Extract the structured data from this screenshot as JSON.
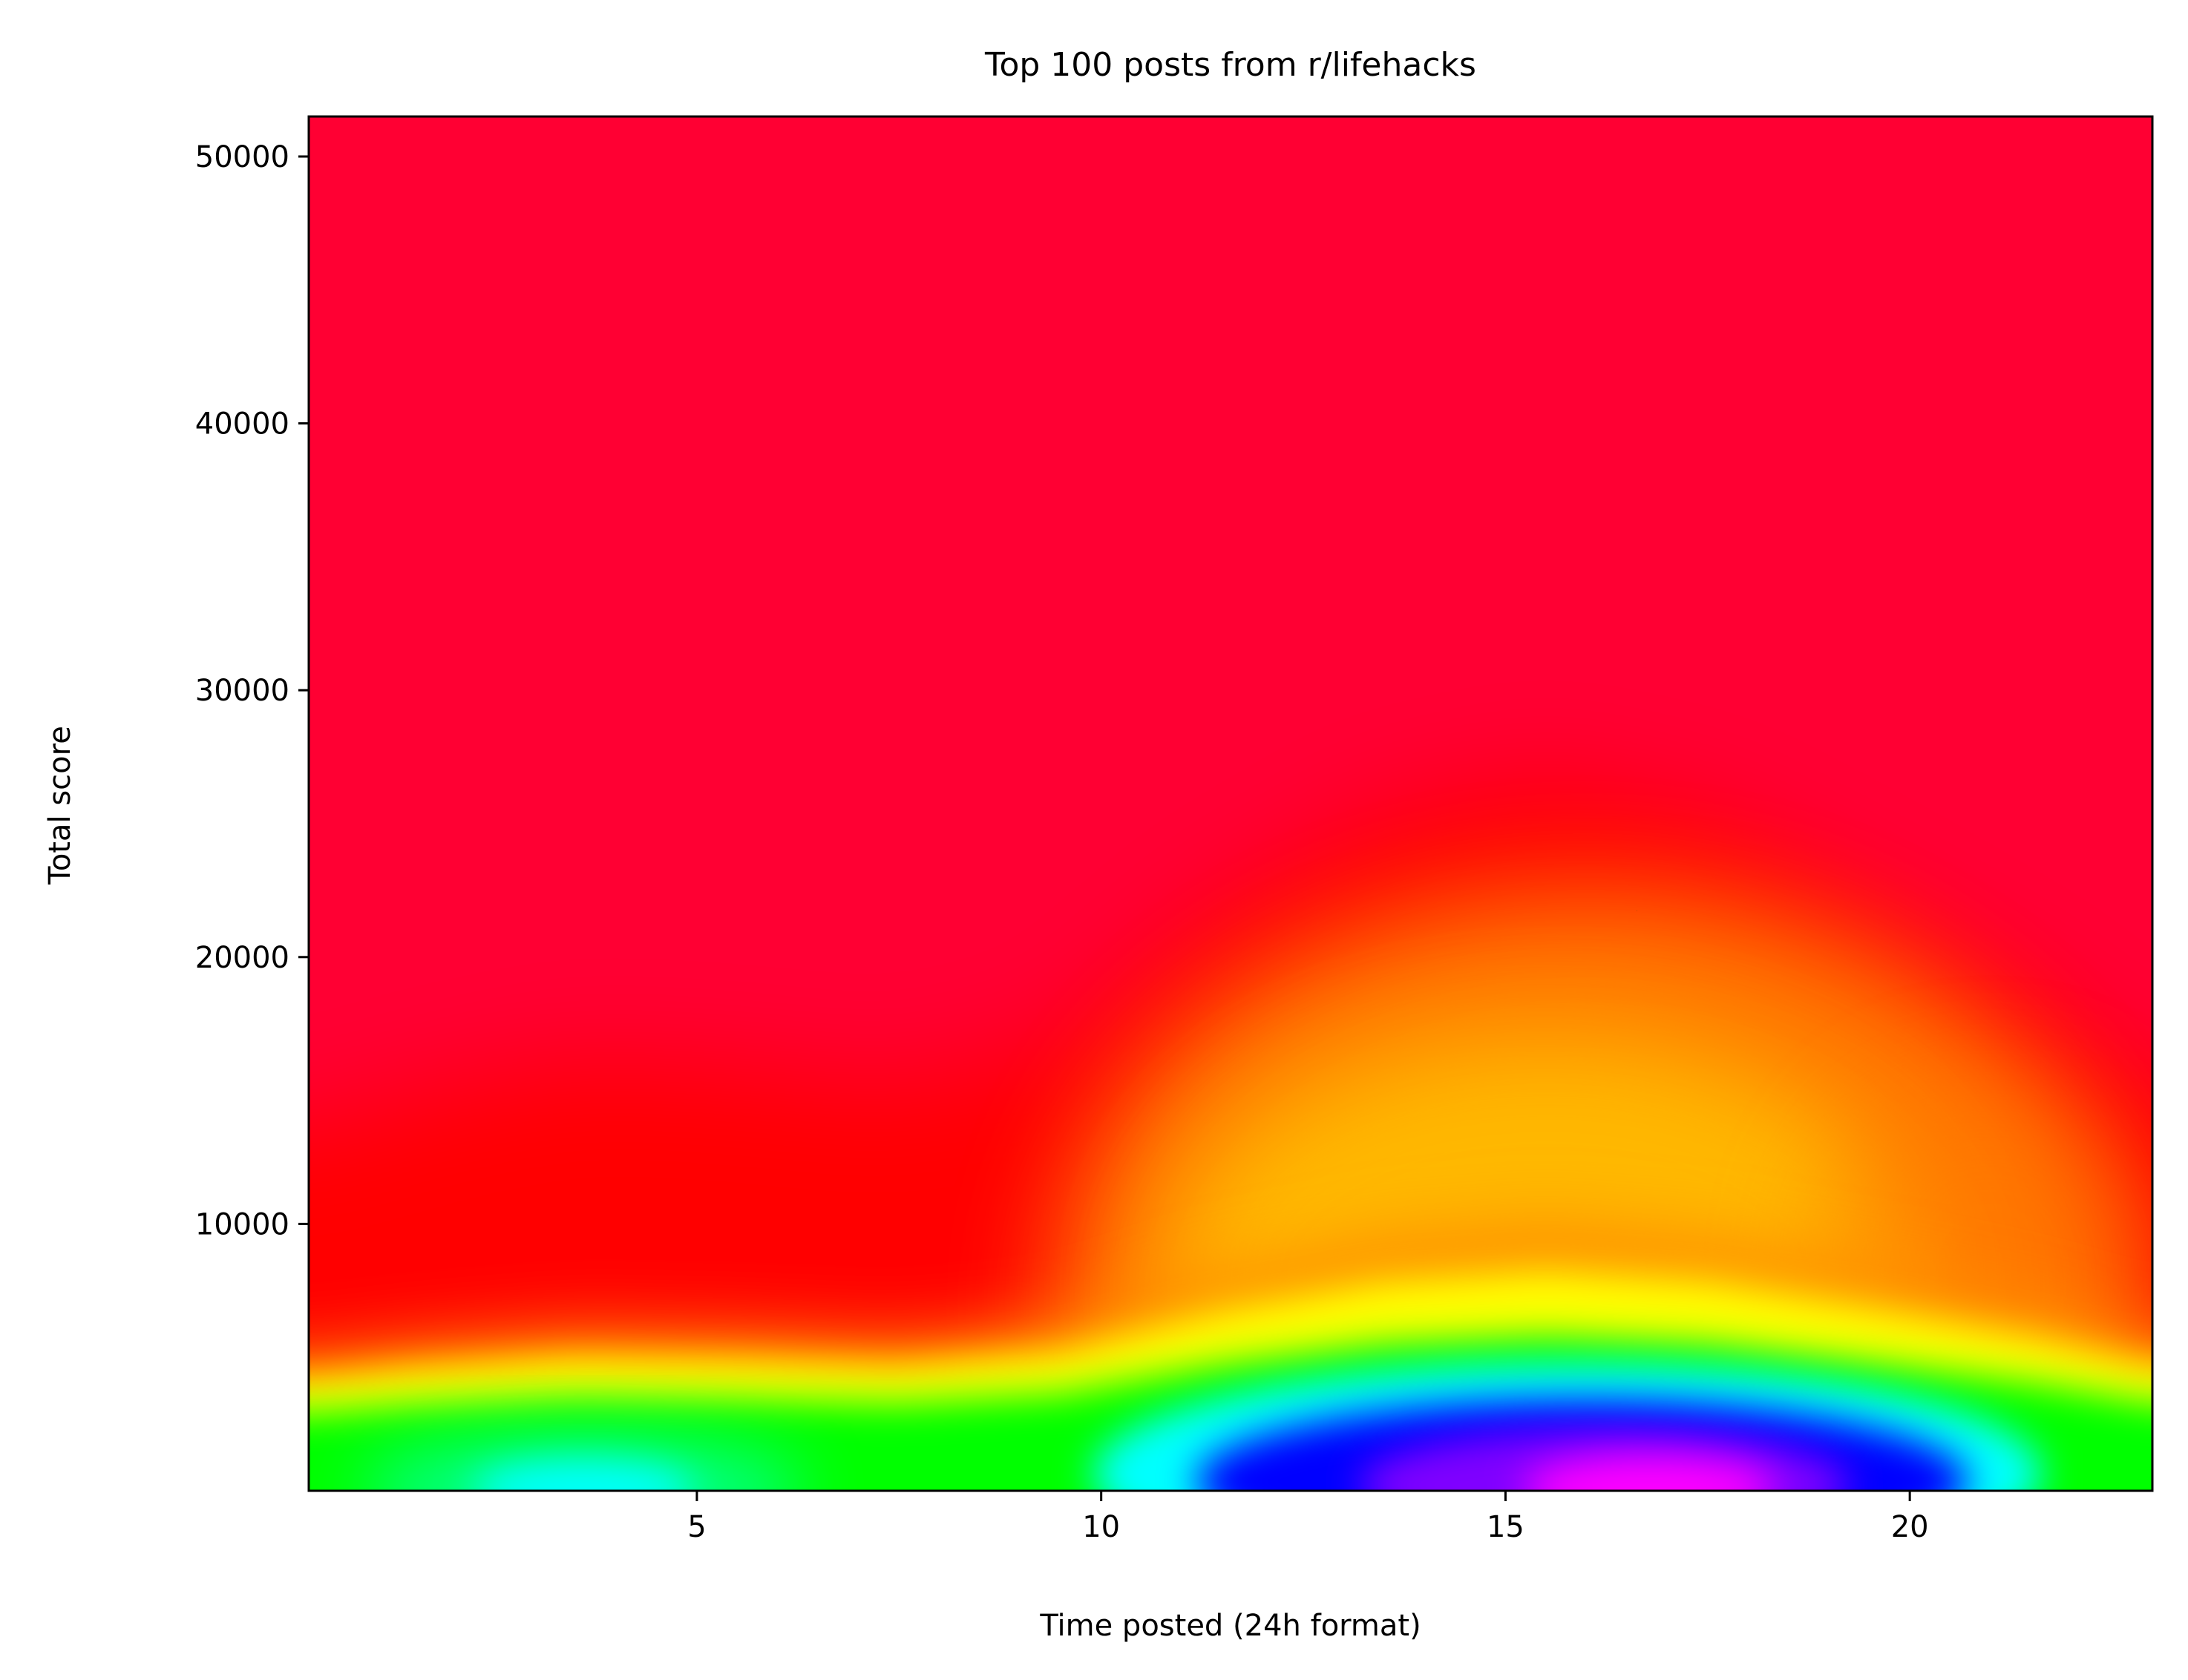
{
  "chart_data": {
    "type": "heatmap",
    "title": "Top 100 posts from r/lifehacks",
    "xlabel": "Time posted (24h format)",
    "ylabel": "Total score",
    "xlim": [
      0.2,
      23
    ],
    "ylim": [
      0,
      51500
    ],
    "xticks": [
      5,
      10,
      15,
      20
    ],
    "yticks": [
      10000,
      20000,
      30000,
      40000,
      50000
    ],
    "colormap": "gist_rainbow_r",
    "colormap_stops": [
      "#ff0033",
      "#ff0000",
      "#ffff00",
      "#00ff00",
      "#00ffff",
      "#0000ff",
      "#ff00ff"
    ],
    "background_color": "#ff0033",
    "grid": false,
    "legend": "none",
    "density_profile": [
      {
        "x": 0.2,
        "yellow_level": 4200
      },
      {
        "x": 1.5,
        "yellow_level": 4600
      },
      {
        "x": 3.5,
        "yellow_level": 5000
      },
      {
        "x": 5.5,
        "yellow_level": 4900
      },
      {
        "x": 7.5,
        "yellow_level": 4700
      },
      {
        "x": 9.5,
        "yellow_level": 5200
      },
      {
        "x": 11.5,
        "yellow_level": 6800
      },
      {
        "x": 13.5,
        "yellow_level": 7900
      },
      {
        "x": 15.5,
        "yellow_level": 8300
      },
      {
        "x": 17.5,
        "yellow_level": 7900
      },
      {
        "x": 19.5,
        "yellow_level": 6900
      },
      {
        "x": 21.5,
        "yellow_level": 5800
      },
      {
        "x": 23,
        "yellow_level": 4700
      }
    ],
    "hotspots": [
      {
        "x": 3.6,
        "y": 600,
        "peak_color": "#00ffff"
      },
      {
        "x": 16.5,
        "y": 900,
        "peak_color": "#ff00ff"
      }
    ]
  }
}
